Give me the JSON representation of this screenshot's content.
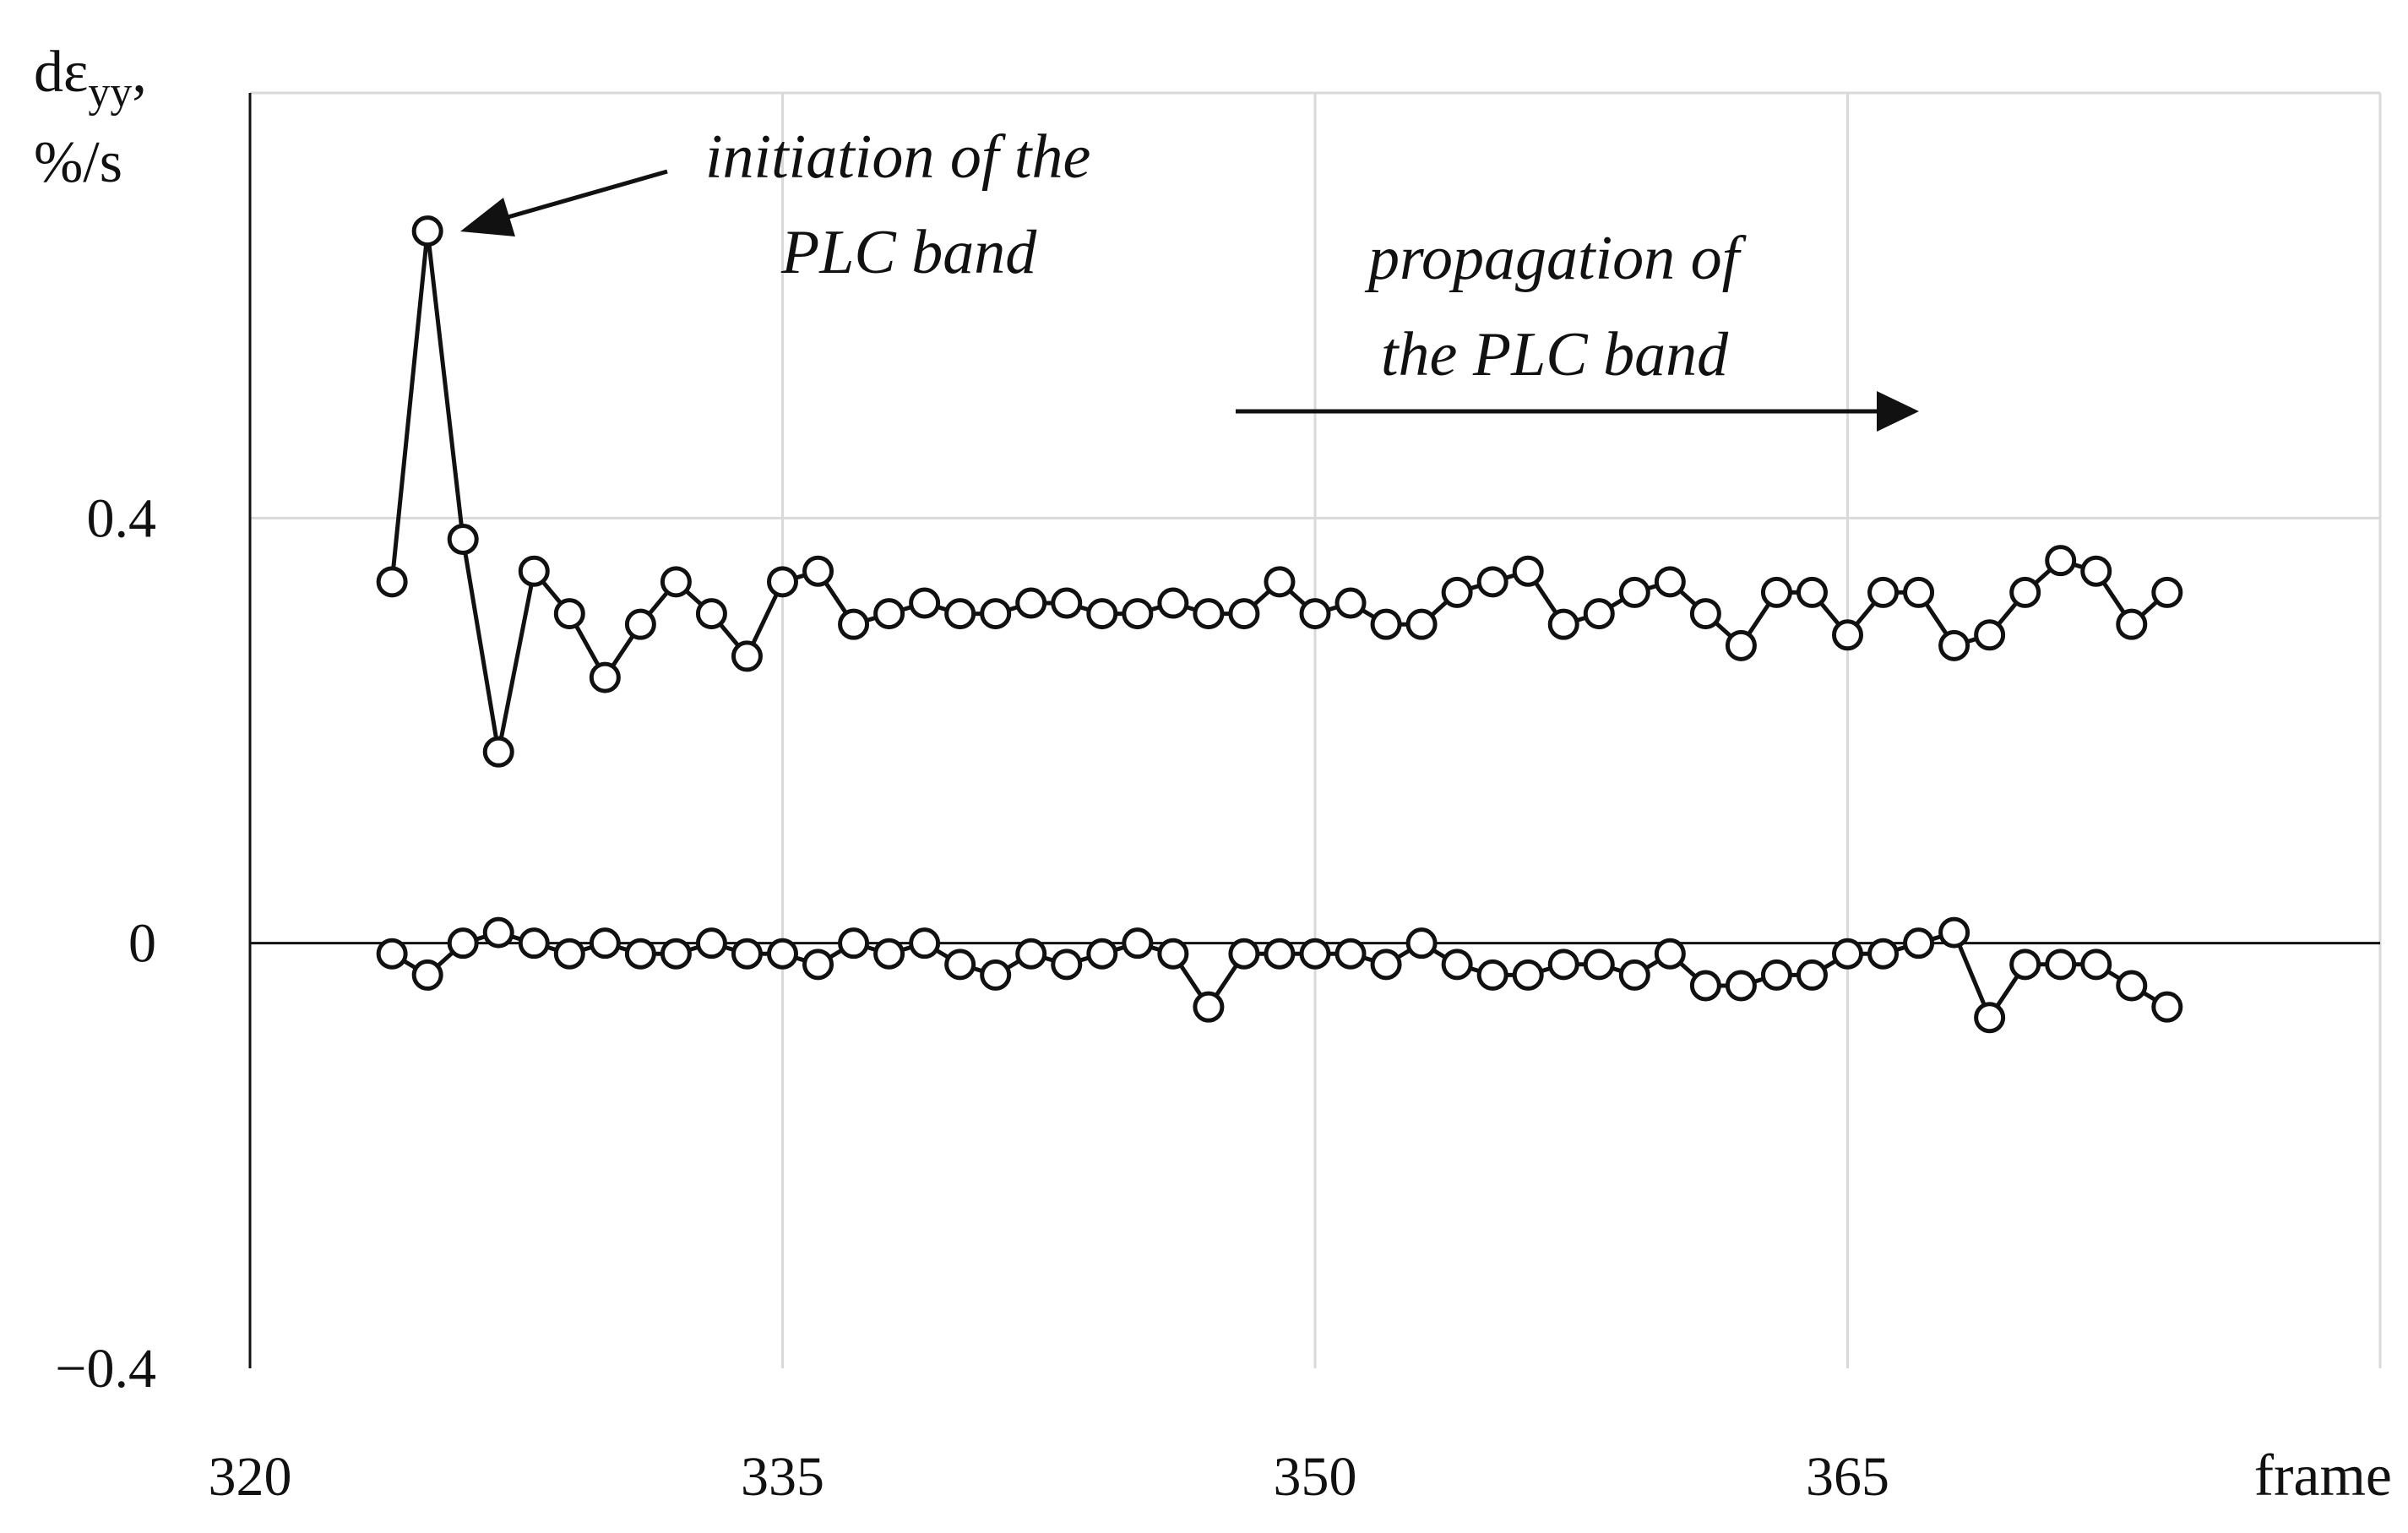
{
  "chart_data": {
    "type": "line",
    "ylabel_main": "dε",
    "ylabel_sub": "yy",
    "ylabel_suffix": ",",
    "ylabel_line2": "%/s",
    "xlabel": "frame",
    "xlim": [
      320,
      380
    ],
    "ylim": [
      -0.4,
      0.8
    ],
    "xticks": [
      "320",
      "335",
      "350",
      "365"
    ],
    "yticks": [
      "0.4",
      "0",
      "−0.4"
    ],
    "grid": true,
    "annotations": {
      "initiation_line1": "initiation of the",
      "initiation_line2": "PLC band",
      "propagation_line1": "propagation of",
      "propagation_line2": "the PLC band"
    },
    "series": [
      {
        "x": [
          324,
          325,
          326,
          327,
          328,
          329,
          330,
          331,
          332,
          333,
          334,
          335,
          336,
          337,
          338,
          339,
          340,
          341,
          342,
          343,
          344,
          345,
          346,
          347,
          348,
          349,
          350,
          351,
          352,
          353,
          354,
          355,
          356,
          357,
          358,
          359,
          360,
          361,
          362,
          363,
          364,
          365,
          366,
          367,
          368,
          369,
          370,
          371,
          372,
          373,
          374
        ],
        "y": [
          0.34,
          0.67,
          0.38,
          0.18,
          0.35,
          0.31,
          0.25,
          0.3,
          0.34,
          0.31,
          0.27,
          0.34,
          0.35,
          0.3,
          0.31,
          0.32,
          0.31,
          0.31,
          0.32,
          0.32,
          0.31,
          0.31,
          0.32,
          0.31,
          0.31,
          0.34,
          0.31,
          0.32,
          0.3,
          0.3,
          0.33,
          0.34,
          0.35,
          0.3,
          0.31,
          0.33,
          0.34,
          0.31,
          0.28,
          0.33,
          0.33,
          0.29,
          0.33,
          0.33,
          0.28,
          0.29,
          0.33,
          0.36,
          0.35,
          0.3,
          0.33
        ]
      },
      {
        "x": [
          324,
          325,
          326,
          327,
          328,
          329,
          330,
          331,
          332,
          333,
          334,
          335,
          336,
          337,
          338,
          339,
          340,
          341,
          342,
          343,
          344,
          345,
          346,
          347,
          348,
          349,
          350,
          351,
          352,
          353,
          354,
          355,
          356,
          357,
          358,
          359,
          360,
          361,
          362,
          363,
          364,
          365,
          366,
          367,
          368,
          369,
          370,
          371,
          372,
          373,
          374
        ],
        "y": [
          -0.01,
          -0.03,
          0.0,
          0.01,
          0.0,
          -0.01,
          0.0,
          -0.01,
          -0.01,
          0.0,
          -0.01,
          -0.01,
          -0.02,
          0.0,
          -0.01,
          0.0,
          -0.02,
          -0.03,
          -0.01,
          -0.02,
          -0.01,
          0.0,
          -0.01,
          -0.06,
          -0.01,
          -0.01,
          -0.01,
          -0.01,
          -0.02,
          0.0,
          -0.02,
          -0.03,
          -0.03,
          -0.02,
          -0.02,
          -0.03,
          -0.01,
          -0.04,
          -0.04,
          -0.03,
          -0.03,
          -0.01,
          -0.01,
          0.0,
          0.01,
          -0.07,
          -0.02,
          -0.02,
          -0.02,
          -0.04,
          -0.06
        ]
      }
    ]
  }
}
